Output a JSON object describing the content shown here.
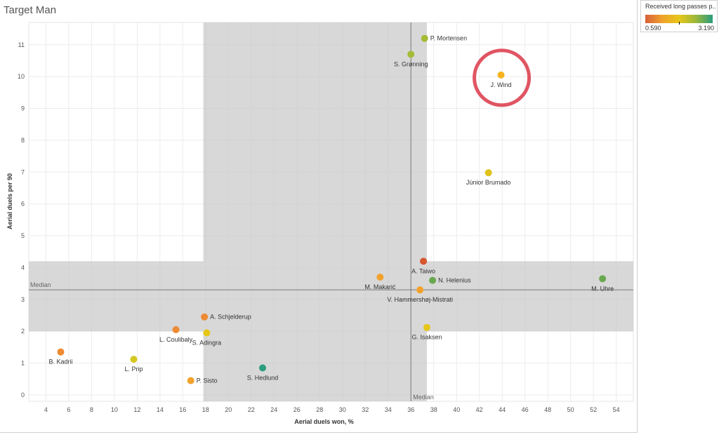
{
  "chart_data": {
    "type": "scatter",
    "title": "Target Man",
    "xlabel": "Aerial duels won, %",
    "ylabel": "Aerial duels per 90",
    "xlim": [
      2.5,
      55.5
    ],
    "ylim": [
      -0.2,
      11.7
    ],
    "xticks": [
      4,
      6,
      8,
      10,
      12,
      14,
      16,
      18,
      20,
      22,
      24,
      26,
      28,
      30,
      32,
      34,
      36,
      38,
      40,
      42,
      44,
      46,
      48,
      50,
      52,
      54
    ],
    "yticks": [
      0,
      1,
      2,
      3,
      4,
      5,
      6,
      7,
      8,
      9,
      10,
      11
    ],
    "grid": true,
    "median_x": 36.0,
    "median_y": 3.3,
    "median_label": "Median",
    "band_x": [
      17.8,
      37.4
    ],
    "band_y": [
      2.0,
      4.2
    ],
    "color_legend": {
      "title": "Received long passes p...",
      "min_label": "0.590",
      "max_label": "3.190",
      "min": 0.59,
      "max": 3.19,
      "marker_value": 1.9,
      "colors": [
        "#d95f3b",
        "#f0a12c",
        "#e6c619",
        "#9cb83a",
        "#2a9d7e"
      ]
    },
    "highlight": {
      "x": 43.9,
      "y": 10.05,
      "color": "#e05563"
    },
    "points": [
      {
        "label": "P. Mortensen",
        "x": 37.2,
        "y": 11.2,
        "color": "#a3bb35",
        "label_pos": "right"
      },
      {
        "label": "S. Grønning",
        "x": 36.0,
        "y": 10.7,
        "color": "#a3bb35",
        "label_pos": "below"
      },
      {
        "label": "J. Wind",
        "x": 43.9,
        "y": 10.05,
        "color": "#f5b31f",
        "label_pos": "below"
      },
      {
        "label": "Júnior Brumado",
        "x": 42.8,
        "y": 6.98,
        "color": "#e0c21a",
        "label_pos": "below"
      },
      {
        "label": "A. Taiwo",
        "x": 37.1,
        "y": 4.2,
        "color": "#d7562f",
        "label_pos": "below"
      },
      {
        "label": "M. Makarić",
        "x": 33.3,
        "y": 3.7,
        "color": "#f2a12c",
        "label_pos": "below"
      },
      {
        "label": "N. Helenius",
        "x": 37.9,
        "y": 3.6,
        "color": "#6aa84f",
        "label_pos": "right"
      },
      {
        "label": "M. Uhre",
        "x": 52.8,
        "y": 3.65,
        "color": "#6aa84f",
        "label_pos": "below"
      },
      {
        "label": "V. Hammershøj-Mistrati",
        "x": 36.8,
        "y": 3.3,
        "color": "#f2a12c",
        "label_pos": "below"
      },
      {
        "label": "A. Schjelderup",
        "x": 17.9,
        "y": 2.45,
        "color": "#ee8a33",
        "label_pos": "right"
      },
      {
        "label": "G. Isaksen",
        "x": 37.4,
        "y": 2.12,
        "color": "#e6c619",
        "label_pos": "below"
      },
      {
        "label": "L. Coulibaly",
        "x": 15.4,
        "y": 2.05,
        "color": "#ee8a33",
        "label_pos": "below"
      },
      {
        "label": "S. Adingra",
        "x": 18.1,
        "y": 1.95,
        "color": "#e6c619",
        "label_pos": "below"
      },
      {
        "label": "B. Kadrii",
        "x": 5.3,
        "y": 1.35,
        "color": "#ee8a33",
        "label_pos": "below"
      },
      {
        "label": "L. Prip",
        "x": 11.7,
        "y": 1.12,
        "color": "#d4c720",
        "label_pos": "below"
      },
      {
        "label": "S. Hedlund",
        "x": 23.0,
        "y": 0.85,
        "color": "#2a9d7e",
        "label_pos": "below"
      },
      {
        "label": "P. Sisto",
        "x": 16.7,
        "y": 0.45,
        "color": "#f2a12c",
        "label_pos": "right"
      }
    ]
  }
}
